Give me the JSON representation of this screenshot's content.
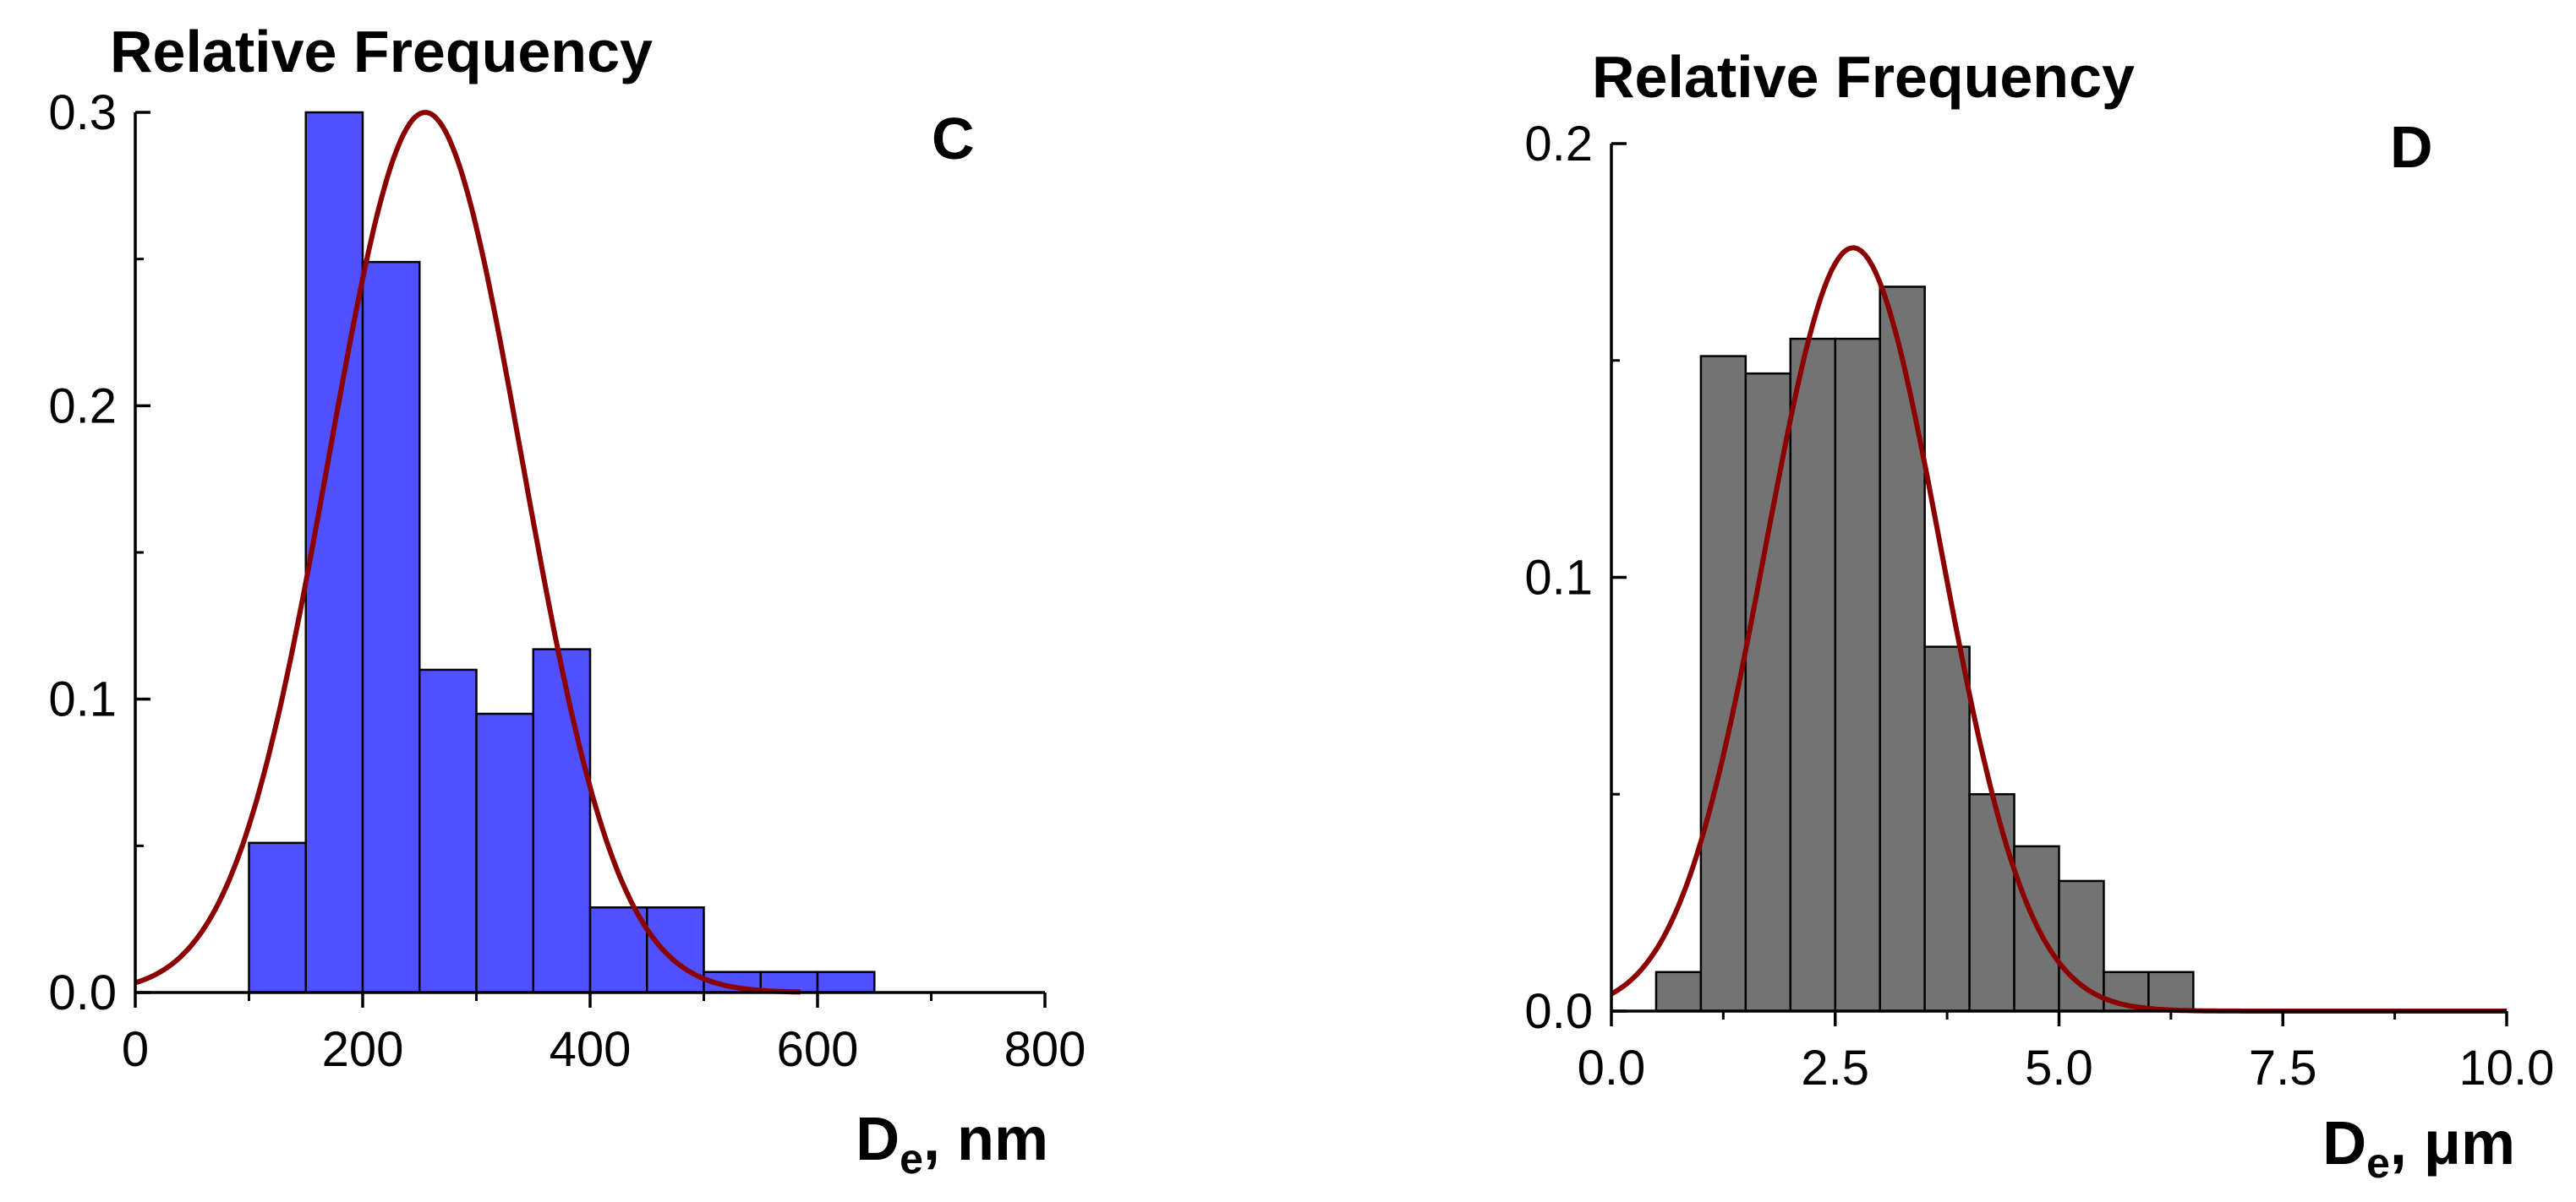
{
  "chart_data": [
    {
      "type": "bar",
      "panel_letter": "C",
      "ylabel": "Relative Frequency",
      "xlabel": {
        "main": "D",
        "sub": "e",
        "suffix": ", nm"
      },
      "xlim": [
        0,
        800
      ],
      "ylim": [
        0,
        0.3
      ],
      "xticks": [
        0,
        200,
        400,
        600,
        800
      ],
      "xtick_labels": [
        "0",
        "200",
        "400",
        "600",
        "800"
      ],
      "yticks": [
        0.0,
        0.1,
        0.2,
        0.3
      ],
      "ytick_labels": [
        "0.0",
        "0.1",
        "0.2",
        "0.3"
      ],
      "x_minor_step": 100,
      "y_minor_step": 0.05,
      "bin_width": 50,
      "bins": [
        {
          "x0": 100,
          "x1": 150,
          "value": 0.051
        },
        {
          "x0": 150,
          "x1": 200,
          "value": 0.3
        },
        {
          "x0": 200,
          "x1": 250,
          "value": 0.249
        },
        {
          "x0": 250,
          "x1": 300,
          "value": 0.11
        },
        {
          "x0": 300,
          "x1": 350,
          "value": 0.095
        },
        {
          "x0": 350,
          "x1": 400,
          "value": 0.117
        },
        {
          "x0": 400,
          "x1": 450,
          "value": 0.029
        },
        {
          "x0": 450,
          "x1": 500,
          "value": 0.029
        },
        {
          "x0": 500,
          "x1": 550,
          "value": 0.007
        },
        {
          "x0": 550,
          "x1": 600,
          "value": 0.007
        },
        {
          "x0": 600,
          "x1": 650,
          "value": 0.007
        }
      ],
      "fit": {
        "type": "gaussian",
        "mean": 255,
        "sigma": 85,
        "amplitude": 0.3,
        "x_range": [
          0,
          585
        ]
      },
      "bar_color": "#5050FF",
      "curve_color": "#8B0000",
      "grid": false,
      "legend": "none"
    },
    {
      "type": "bar",
      "panel_letter": "D",
      "ylabel": "Relative Frequency",
      "xlabel": {
        "main": "D",
        "sub": "e",
        "suffix": ", μm"
      },
      "xlim": [
        0,
        10
      ],
      "ylim": [
        0,
        0.2
      ],
      "xticks": [
        0,
        2.5,
        5,
        7.5,
        10
      ],
      "xtick_labels": [
        "0.0",
        "2.5",
        "5.0",
        "7.5",
        "10.0"
      ],
      "yticks": [
        0.0,
        0.1,
        0.2
      ],
      "ytick_labels": [
        "0.0",
        "0.1",
        "0.2"
      ],
      "x_minor_step": 1.25,
      "y_minor_step": 0.05,
      "bin_width": 0.5,
      "bins": [
        {
          "x0": 0.5,
          "x1": 1.0,
          "value": 0.009
        },
        {
          "x0": 1.0,
          "x1": 1.5,
          "value": 0.151
        },
        {
          "x0": 1.5,
          "x1": 2.0,
          "value": 0.147
        },
        {
          "x0": 2.0,
          "x1": 2.5,
          "value": 0.155
        },
        {
          "x0": 2.5,
          "x1": 3.0,
          "value": 0.155
        },
        {
          "x0": 3.0,
          "x1": 3.5,
          "value": 0.167
        },
        {
          "x0": 3.5,
          "x1": 4.0,
          "value": 0.084
        },
        {
          "x0": 4.0,
          "x1": 4.5,
          "value": 0.05
        },
        {
          "x0": 4.5,
          "x1": 5.0,
          "value": 0.038
        },
        {
          "x0": 5.0,
          "x1": 5.5,
          "value": 0.03
        },
        {
          "x0": 5.5,
          "x1": 6.0,
          "value": 0.009
        },
        {
          "x0": 6.0,
          "x1": 6.5,
          "value": 0.009
        }
      ],
      "fit": {
        "type": "gaussian",
        "mean": 2.7,
        "sigma": 0.98,
        "amplitude": 0.176,
        "x_range": [
          0,
          10
        ]
      },
      "bar_color": "#737373",
      "curve_color": "#8B0000",
      "grid": false,
      "legend": "none"
    }
  ]
}
